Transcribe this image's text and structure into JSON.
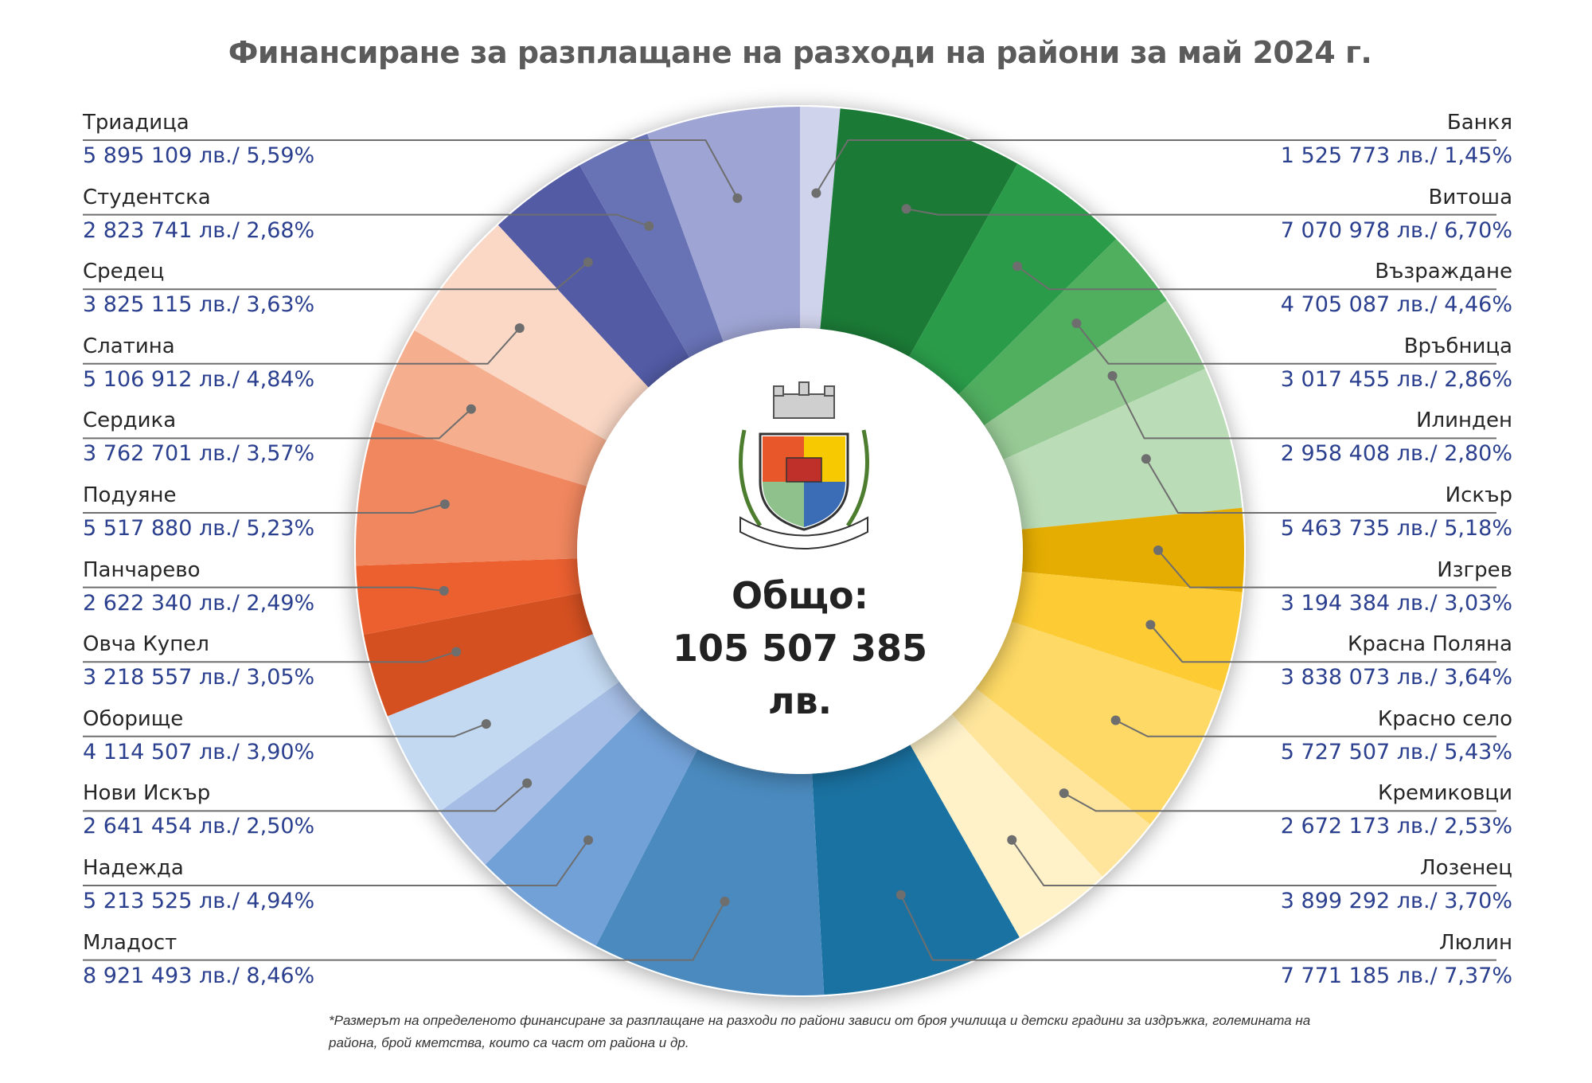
{
  "title": "Финансиране за разплащане на разходи на райони за май 2024 г.",
  "total": {
    "label": "Общо:",
    "value": "105 507 385 лв."
  },
  "footnote": "*Размерът на определеното финансиране за разплащане на разходи по райони зависи от броя училища и детски градини за издръжка, големината на района, брой кметства, които са част от района и др.",
  "chart_data": {
    "type": "pie",
    "variant": "donut",
    "title": "Финансиране за разплащане на разходи на райони за май 2024 г.",
    "unit": "лв.",
    "total": 105507385,
    "series": [
      {
        "name": "Банкя",
        "amount": 1525773,
        "percent": 1.45,
        "label": "1 525 773 лв./ 1,45%",
        "color": "#d0d3ec",
        "side": "right"
      },
      {
        "name": "Витоша",
        "amount": 7070978,
        "percent": 6.7,
        "label": "7 070 978 лв./ 6,70%",
        "color": "#1b7b36",
        "side": "right"
      },
      {
        "name": "Възраждане",
        "amount": 4705087,
        "percent": 4.46,
        "label": "4 705 087 лв./ 4,46%",
        "color": "#2a9b49",
        "side": "right"
      },
      {
        "name": "Връбница",
        "amount": 3017455,
        "percent": 2.86,
        "label": "3 017 455 лв./ 2,86%",
        "color": "#50ae5f",
        "side": "right"
      },
      {
        "name": "Илинден",
        "amount": 2958408,
        "percent": 2.8,
        "label": "2 958 408 лв./ 2,80%",
        "color": "#97ca95",
        "side": "right"
      },
      {
        "name": "Искър",
        "amount": 5463735,
        "percent": 5.18,
        "label": "5 463 735 лв./ 5,18%",
        "color": "#badcb6",
        "side": "right"
      },
      {
        "name": "Изгрев",
        "amount": 3194384,
        "percent": 3.03,
        "label": "3 194 384 лв./ 3,03%",
        "color": "#e5ad02",
        "side": "right"
      },
      {
        "name": "Красна Поляна",
        "amount": 3838073,
        "percent": 3.64,
        "label": "3 838 073 лв./ 3,64%",
        "color": "#fdcc34",
        "side": "right"
      },
      {
        "name": "Красно село",
        "amount": 5727507,
        "percent": 5.43,
        "label": "5 727 507 лв./ 5,43%",
        "color": "#fed965",
        "side": "right"
      },
      {
        "name": "Кремиковци",
        "amount": 2672173,
        "percent": 2.53,
        "label": "2 672 173 лв./ 2,53%",
        "color": "#fee59b",
        "side": "right"
      },
      {
        "name": "Лозенец",
        "amount": 3899292,
        "percent": 3.7,
        "label": "3 899 292 лв./ 3,70%",
        "color": "#fff2c9",
        "side": "right"
      },
      {
        "name": "Люлин",
        "amount": 7771185,
        "percent": 7.37,
        "label": "7 771 185 лв./ 7,37%",
        "color": "#1a72a2",
        "side": "right"
      },
      {
        "name": "Младост",
        "amount": 8921493,
        "percent": 8.46,
        "label": "8 921 493 лв./ 8,46%",
        "color": "#4a8abe",
        "side": "left"
      },
      {
        "name": "Надежда",
        "amount": 5213525,
        "percent": 4.94,
        "label": "5 213 525 лв./ 4,94%",
        "color": "#72a1d7",
        "side": "left"
      },
      {
        "name": "Нови Искър",
        "amount": 2641454,
        "percent": 2.5,
        "label": "2 641 454 лв./ 2,50%",
        "color": "#a6bee5",
        "side": "left"
      },
      {
        "name": "Оборище",
        "amount": 4114507,
        "percent": 3.9,
        "label": "4 114 507 лв./ 3,90%",
        "color": "#c3d9f1",
        "side": "left"
      },
      {
        "name": "Овча Купел",
        "amount": 3218557,
        "percent": 3.05,
        "label": "3 218 557 лв./ 3,05%",
        "color": "#d55021",
        "side": "left"
      },
      {
        "name": "Панчарево",
        "amount": 2622340,
        "percent": 2.49,
        "label": "2 622 340 лв./ 2,49%",
        "color": "#ec6030",
        "side": "left"
      },
      {
        "name": "Подуяне",
        "amount": 5517880,
        "percent": 5.23,
        "label": "5 517 880 лв./ 5,23%",
        "color": "#f1875f",
        "side": "left"
      },
      {
        "name": "Сердика",
        "amount": 3762701,
        "percent": 3.57,
        "label": "3 762 701 лв./ 3,57%",
        "color": "#f5af8f",
        "side": "left"
      },
      {
        "name": "Слатина",
        "amount": 5106912,
        "percent": 4.84,
        "label": "5 106 912 лв./ 4,84%",
        "color": "#fbd8c6",
        "side": "left"
      },
      {
        "name": "Средец",
        "amount": 3825115,
        "percent": 3.63,
        "label": "3 825 115 лв./ 3,63%",
        "color": "#525ba4",
        "side": "left"
      },
      {
        "name": "Студентска",
        "amount": 2823741,
        "percent": 2.68,
        "label": "2 823 741 лв./ 2,68%",
        "color": "#6873b6",
        "side": "left"
      },
      {
        "name": "Триадица",
        "amount": 5895109,
        "percent": 5.59,
        "label": "5 895 109 лв./ 5,59%",
        "color": "#9ea4d3",
        "side": "left"
      }
    ]
  }
}
